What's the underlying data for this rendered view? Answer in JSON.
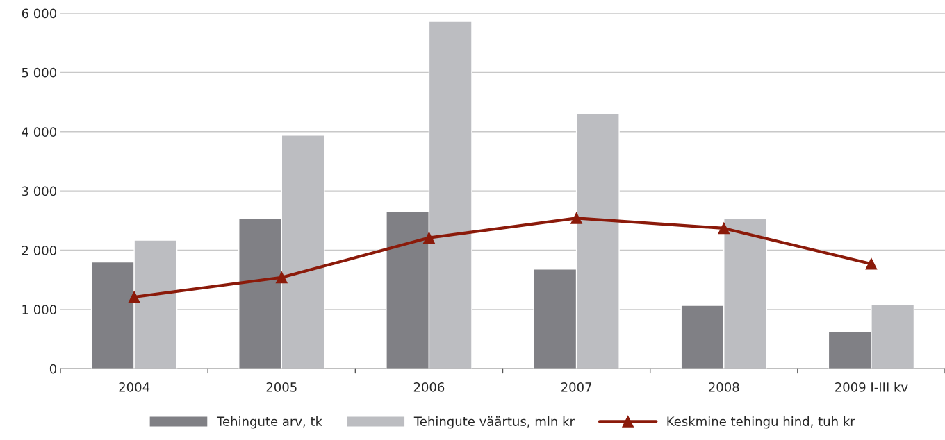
{
  "chart_data": {
    "type": "bar",
    "categories": [
      "2004",
      "2005",
      "2006",
      "2007",
      "2008",
      "2009 I-III kv"
    ],
    "series": [
      {
        "name": "Tehingute arv, tk",
        "color": "#808085",
        "values": [
          1800,
          2530,
          2650,
          1680,
          1070,
          620
        ]
      },
      {
        "name": "Tehingute väärtus, mln kr",
        "color": "#bcbdc1",
        "values": [
          2170,
          3940,
          5870,
          4310,
          2530,
          1080
        ]
      },
      {
        "name": "Keskmine tehingu hind, tuh kr",
        "type": "line",
        "color": "#8b1a0a",
        "marker": "triangle",
        "values": [
          1210,
          1540,
          2210,
          2540,
          2370,
          1770
        ]
      }
    ],
    "ylim": [
      0,
      6000
    ],
    "yticks": [
      {
        "value": 0,
        "label": "0"
      },
      {
        "value": 1000,
        "label": "1 000"
      },
      {
        "value": 2000,
        "label": "2 000"
      },
      {
        "value": 3000,
        "label": "3 000"
      },
      {
        "value": 4000,
        "label": "4 000"
      },
      {
        "value": 5000,
        "label": "5 000"
      },
      {
        "value": 6000,
        "label": "6 000"
      }
    ],
    "grid": "y",
    "legend": "bottom"
  }
}
